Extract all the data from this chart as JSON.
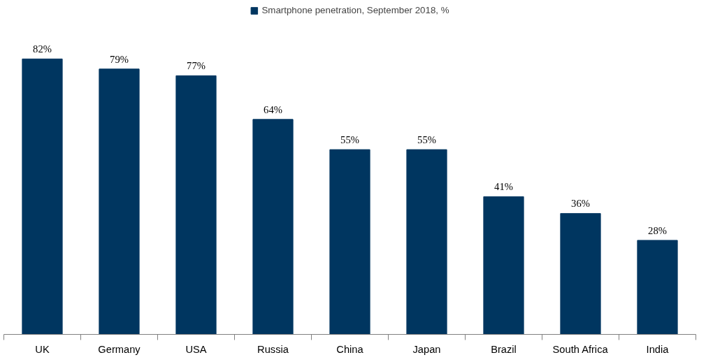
{
  "chart_data": {
    "type": "bar",
    "categories": [
      "UK",
      "Germany",
      "USA",
      "Russia",
      "China",
      "Japan",
      "Brazil",
      "South Africa",
      "India"
    ],
    "series": [
      {
        "name": "Smartphone penetration, September 2018, %",
        "color": "#003660",
        "values": [
          82,
          79,
          77,
          64,
          55,
          55,
          41,
          36,
          28
        ],
        "value_labels": [
          "82%",
          "79%",
          "77%",
          "64%",
          "55%",
          "55%",
          "41%",
          "36%",
          "28%"
        ]
      }
    ],
    "legend": "top"
  }
}
